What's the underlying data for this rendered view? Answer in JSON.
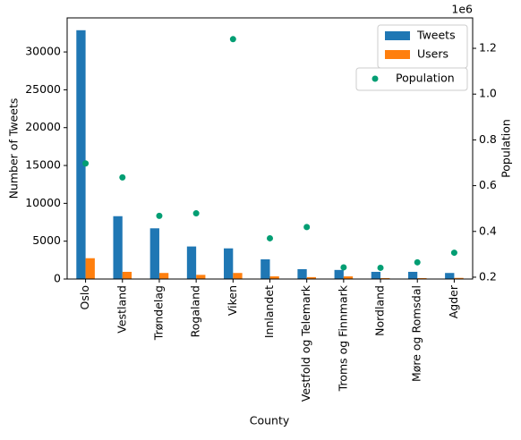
{
  "chart_data": {
    "type": "bar",
    "xlabel": "County",
    "ylabel": "Number of Tweets",
    "y2label": "Population",
    "y2_offset": "1e6",
    "categories": [
      "Oslo",
      "Vestland",
      "Trøndelag",
      "Rogaland",
      "Viken",
      "Innlandet",
      "Vestfold og Telemark",
      "Troms og Finnmark",
      "Nordland",
      "Møre og Romsdal",
      "Agder"
    ],
    "series": [
      {
        "name": "Tweets",
        "type": "bar",
        "color": "#1f77b4",
        "values": [
          32870,
          8300,
          6700,
          4300,
          4050,
          2600,
          1300,
          1200,
          950,
          950,
          800
        ]
      },
      {
        "name": "Users",
        "type": "bar",
        "color": "#ff7f0e",
        "values": [
          2750,
          950,
          800,
          550,
          800,
          350,
          250,
          350,
          120,
          120,
          150
        ]
      },
      {
        "name": "Population",
        "type": "scatter",
        "axis": "y2",
        "color": "#029e73",
        "values": [
          0.697,
          0.636,
          0.468,
          0.479,
          1.24,
          0.37,
          0.419,
          0.243,
          0.241,
          0.265,
          0.307
        ]
      }
    ],
    "ylim": [
      0,
      34500
    ],
    "yticks": [
      0,
      5000,
      10000,
      15000,
      20000,
      25000,
      30000
    ],
    "y2lim": [
      0.192,
      1.333
    ],
    "y2ticks": [
      {
        "value": 0.2,
        "label": "0.2"
      },
      {
        "value": 0.4,
        "label": "0.4"
      },
      {
        "value": 0.6,
        "label": "0.6"
      },
      {
        "value": 0.8,
        "label": "0.8"
      },
      {
        "value": 1,
        "label": "1.0"
      },
      {
        "value": 1.2,
        "label": "1.2"
      }
    ],
    "legend": "upper right"
  }
}
